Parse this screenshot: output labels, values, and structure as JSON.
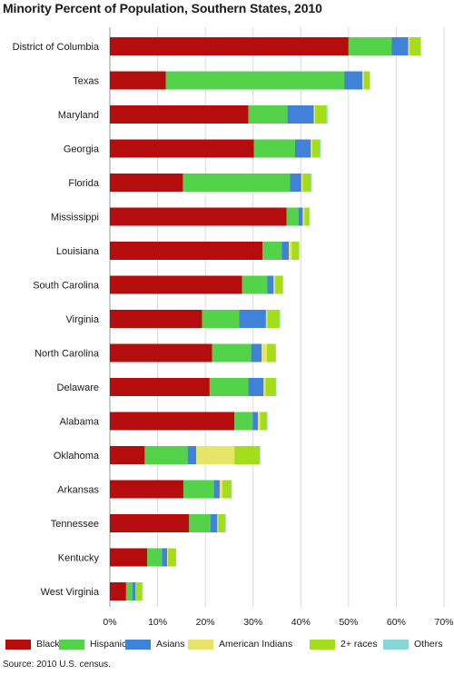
{
  "chart_data": {
    "type": "bar",
    "orientation": "horizontal",
    "stacked": true,
    "title": "Minority Percent of Population, Southern States, 2010",
    "xlabel": "",
    "ylabel": "",
    "xlim": [
      0,
      70
    ],
    "xticks": [
      "0%",
      "10%",
      "20%",
      "30%",
      "40%",
      "50%",
      "60%",
      "70%"
    ],
    "grid": "vertical",
    "legend_position": "bottom",
    "categories": [
      "District of Columbia",
      "Texas",
      "Maryland",
      "Georgia",
      "Florida",
      "Mississippi",
      "Louisiana",
      "South Carolina",
      "Virginia",
      "North Carolina",
      "Delaware",
      "Alabama",
      "Oklahoma",
      "Arkansas",
      "Tennessee",
      "Kentucky",
      "West Virginia"
    ],
    "series": [
      {
        "name": "Blacks",
        "color": "#b50d0d",
        "values": [
          50.0,
          11.7,
          29.0,
          30.2,
          15.3,
          37.0,
          32.0,
          27.7,
          19.3,
          21.4,
          20.9,
          26.1,
          7.3,
          15.4,
          16.6,
          7.8,
          3.4
        ]
      },
      {
        "name": "Hispanics",
        "color": "#53d24a",
        "values": [
          9.0,
          37.4,
          8.2,
          8.6,
          22.4,
          2.5,
          4.0,
          5.3,
          7.8,
          8.2,
          8.1,
          3.8,
          9.0,
          6.4,
          4.5,
          3.1,
          1.3
        ]
      },
      {
        "name": "Asians",
        "color": "#3f82d8",
        "values": [
          3.5,
          3.8,
          5.5,
          3.3,
          2.4,
          0.9,
          1.5,
          1.3,
          5.6,
          2.2,
          3.2,
          1.1,
          1.8,
          1.2,
          1.4,
          1.1,
          0.7
        ]
      },
      {
        "name": "American Indians",
        "color": "#e8e46a",
        "values": [
          0.3,
          0.3,
          0.3,
          0.3,
          0.3,
          0.4,
          0.6,
          0.3,
          0.3,
          1.1,
          0.4,
          0.5,
          8.0,
          0.6,
          0.2,
          0.2,
          0.1
        ]
      },
      {
        "name": "2+ races",
        "color": "#a4dd1a",
        "values": [
          2.3,
          1.2,
          2.4,
          1.6,
          1.7,
          1.0,
          1.5,
          1.6,
          2.5,
          1.8,
          2.2,
          1.4,
          5.3,
          1.8,
          1.5,
          1.6,
          1.3
        ]
      },
      {
        "name": "Others",
        "color": "#87d7d7",
        "values": [
          0.1,
          0.1,
          0.2,
          0.2,
          0.2,
          0.1,
          0.1,
          0.1,
          0.2,
          0.1,
          0.1,
          0.1,
          0.1,
          0.1,
          0.1,
          0.1,
          0.1
        ]
      }
    ]
  },
  "source_note": "Source: 2010 U.S. census."
}
